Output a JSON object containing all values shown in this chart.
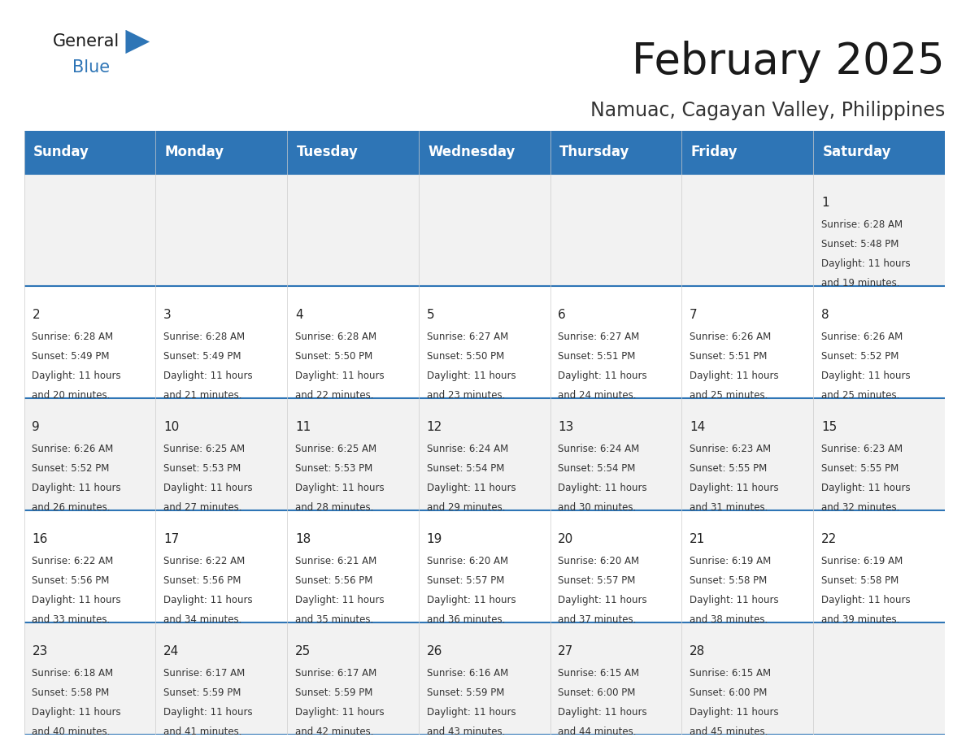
{
  "title": "February 2025",
  "subtitle": "Namuac, Cagayan Valley, Philippines",
  "header_bg": "#2E75B6",
  "header_text": "#FFFFFF",
  "row_bg_odd": "#F2F2F2",
  "row_bg_even": "#FFFFFF",
  "cell_border_color": "#2E75B6",
  "text_color": "#333333",
  "day_headers": [
    "Sunday",
    "Monday",
    "Tuesday",
    "Wednesday",
    "Thursday",
    "Friday",
    "Saturday"
  ],
  "days": [
    {
      "day": 1,
      "col": 6,
      "row": 0,
      "sunrise": "6:28 AM",
      "sunset": "5:48 PM",
      "daylight_hours": 11,
      "daylight_minutes": 19
    },
    {
      "day": 2,
      "col": 0,
      "row": 1,
      "sunrise": "6:28 AM",
      "sunset": "5:49 PM",
      "daylight_hours": 11,
      "daylight_minutes": 20
    },
    {
      "day": 3,
      "col": 1,
      "row": 1,
      "sunrise": "6:28 AM",
      "sunset": "5:49 PM",
      "daylight_hours": 11,
      "daylight_minutes": 21
    },
    {
      "day": 4,
      "col": 2,
      "row": 1,
      "sunrise": "6:28 AM",
      "sunset": "5:50 PM",
      "daylight_hours": 11,
      "daylight_minutes": 22
    },
    {
      "day": 5,
      "col": 3,
      "row": 1,
      "sunrise": "6:27 AM",
      "sunset": "5:50 PM",
      "daylight_hours": 11,
      "daylight_minutes": 23
    },
    {
      "day": 6,
      "col": 4,
      "row": 1,
      "sunrise": "6:27 AM",
      "sunset": "5:51 PM",
      "daylight_hours": 11,
      "daylight_minutes": 24
    },
    {
      "day": 7,
      "col": 5,
      "row": 1,
      "sunrise": "6:26 AM",
      "sunset": "5:51 PM",
      "daylight_hours": 11,
      "daylight_minutes": 25
    },
    {
      "day": 8,
      "col": 6,
      "row": 1,
      "sunrise": "6:26 AM",
      "sunset": "5:52 PM",
      "daylight_hours": 11,
      "daylight_minutes": 25
    },
    {
      "day": 9,
      "col": 0,
      "row": 2,
      "sunrise": "6:26 AM",
      "sunset": "5:52 PM",
      "daylight_hours": 11,
      "daylight_minutes": 26
    },
    {
      "day": 10,
      "col": 1,
      "row": 2,
      "sunrise": "6:25 AM",
      "sunset": "5:53 PM",
      "daylight_hours": 11,
      "daylight_minutes": 27
    },
    {
      "day": 11,
      "col": 2,
      "row": 2,
      "sunrise": "6:25 AM",
      "sunset": "5:53 PM",
      "daylight_hours": 11,
      "daylight_minutes": 28
    },
    {
      "day": 12,
      "col": 3,
      "row": 2,
      "sunrise": "6:24 AM",
      "sunset": "5:54 PM",
      "daylight_hours": 11,
      "daylight_minutes": 29
    },
    {
      "day": 13,
      "col": 4,
      "row": 2,
      "sunrise": "6:24 AM",
      "sunset": "5:54 PM",
      "daylight_hours": 11,
      "daylight_minutes": 30
    },
    {
      "day": 14,
      "col": 5,
      "row": 2,
      "sunrise": "6:23 AM",
      "sunset": "5:55 PM",
      "daylight_hours": 11,
      "daylight_minutes": 31
    },
    {
      "day": 15,
      "col": 6,
      "row": 2,
      "sunrise": "6:23 AM",
      "sunset": "5:55 PM",
      "daylight_hours": 11,
      "daylight_minutes": 32
    },
    {
      "day": 16,
      "col": 0,
      "row": 3,
      "sunrise": "6:22 AM",
      "sunset": "5:56 PM",
      "daylight_hours": 11,
      "daylight_minutes": 33
    },
    {
      "day": 17,
      "col": 1,
      "row": 3,
      "sunrise": "6:22 AM",
      "sunset": "5:56 PM",
      "daylight_hours": 11,
      "daylight_minutes": 34
    },
    {
      "day": 18,
      "col": 2,
      "row": 3,
      "sunrise": "6:21 AM",
      "sunset": "5:56 PM",
      "daylight_hours": 11,
      "daylight_minutes": 35
    },
    {
      "day": 19,
      "col": 3,
      "row": 3,
      "sunrise": "6:20 AM",
      "sunset": "5:57 PM",
      "daylight_hours": 11,
      "daylight_minutes": 36
    },
    {
      "day": 20,
      "col": 4,
      "row": 3,
      "sunrise": "6:20 AM",
      "sunset": "5:57 PM",
      "daylight_hours": 11,
      "daylight_minutes": 37
    },
    {
      "day": 21,
      "col": 5,
      "row": 3,
      "sunrise": "6:19 AM",
      "sunset": "5:58 PM",
      "daylight_hours": 11,
      "daylight_minutes": 38
    },
    {
      "day": 22,
      "col": 6,
      "row": 3,
      "sunrise": "6:19 AM",
      "sunset": "5:58 PM",
      "daylight_hours": 11,
      "daylight_minutes": 39
    },
    {
      "day": 23,
      "col": 0,
      "row": 4,
      "sunrise": "6:18 AM",
      "sunset": "5:58 PM",
      "daylight_hours": 11,
      "daylight_minutes": 40
    },
    {
      "day": 24,
      "col": 1,
      "row": 4,
      "sunrise": "6:17 AM",
      "sunset": "5:59 PM",
      "daylight_hours": 11,
      "daylight_minutes": 41
    },
    {
      "day": 25,
      "col": 2,
      "row": 4,
      "sunrise": "6:17 AM",
      "sunset": "5:59 PM",
      "daylight_hours": 11,
      "daylight_minutes": 42
    },
    {
      "day": 26,
      "col": 3,
      "row": 4,
      "sunrise": "6:16 AM",
      "sunset": "5:59 PM",
      "daylight_hours": 11,
      "daylight_minutes": 43
    },
    {
      "day": 27,
      "col": 4,
      "row": 4,
      "sunrise": "6:15 AM",
      "sunset": "6:00 PM",
      "daylight_hours": 11,
      "daylight_minutes": 44
    },
    {
      "day": 28,
      "col": 5,
      "row": 4,
      "sunrise": "6:15 AM",
      "sunset": "6:00 PM",
      "daylight_hours": 11,
      "daylight_minutes": 45
    }
  ],
  "num_rows": 5,
  "num_cols": 7,
  "title_fontsize": 38,
  "subtitle_fontsize": 17,
  "header_fontsize": 12,
  "day_num_fontsize": 11,
  "cell_text_fontsize": 8.5,
  "logo_general_fontsize": 15,
  "logo_blue_fontsize": 15
}
